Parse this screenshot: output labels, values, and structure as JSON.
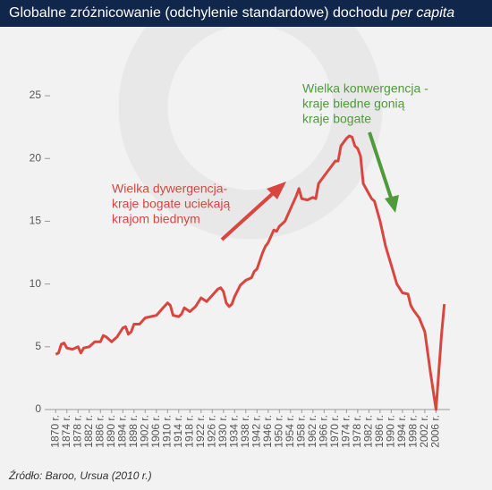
{
  "chart_data": {
    "type": "line",
    "title": "Globalne zróżnicowanie (odchylenie standardowe) dochodu",
    "title_emphasis": "per capita",
    "source": "Źródło: Baroo, Ursua (2010 r.)",
    "color": "#d9453f",
    "x": [
      1870,
      1871,
      1872,
      1873,
      1874,
      1876,
      1878,
      1879,
      1880,
      1882,
      1884,
      1886,
      1887,
      1888,
      1890,
      1892,
      1894,
      1895,
      1896,
      1897,
      1898,
      1900,
      1902,
      1904,
      1906,
      1908,
      1910,
      1911,
      1912,
      1914,
      1915,
      1916,
      1918,
      1920,
      1922,
      1924,
      1926,
      1928,
      1929,
      1930,
      1931,
      1932,
      1933,
      1934,
      1936,
      1938,
      1940,
      1941,
      1942,
      1944,
      1945,
      1946,
      1948,
      1949,
      1950,
      1952,
      1954,
      1956,
      1957,
      1958,
      1960,
      1962,
      1963,
      1964,
      1966,
      1968,
      1970,
      1971,
      1972,
      1974,
      1975,
      1976,
      1977,
      1978,
      1979,
      1980,
      1982,
      1983,
      1984,
      1986,
      1988,
      1990,
      1992,
      1994,
      1996,
      1997,
      1998,
      2000,
      2002,
      2004,
      2006,
      2008,
      2009
    ],
    "values": [
      4.4,
      4.5,
      5.2,
      5.3,
      4.9,
      4.8,
      5.0,
      4.5,
      4.9,
      5.0,
      5.4,
      5.4,
      5.9,
      5.8,
      5.4,
      5.8,
      6.5,
      6.6,
      6.0,
      6.2,
      6.8,
      6.8,
      7.3,
      7.4,
      7.5,
      8.0,
      8.5,
      8.3,
      7.5,
      7.4,
      7.6,
      8.1,
      7.8,
      8.2,
      8.9,
      8.6,
      9.1,
      9.6,
      9.7,
      9.4,
      8.5,
      8.2,
      8.4,
      9.0,
      9.9,
      10.3,
      10.5,
      11.0,
      11.2,
      12.5,
      13.0,
      13.3,
      14.3,
      14.2,
      14.6,
      15.0,
      16.0,
      17.0,
      17.6,
      16.8,
      16.7,
      16.9,
      16.8,
      18.0,
      18.6,
      19.2,
      19.8,
      19.8,
      21.0,
      21.6,
      21.8,
      21.7,
      21.0,
      20.8,
      20.2,
      18.0,
      17.2,
      16.8,
      16.6,
      15.0,
      13.0,
      11.5,
      10.0,
      9.3,
      9.2,
      8.3,
      7.9,
      7.3,
      6.2,
      3.0,
      0,
      6.0,
      8.4
    ],
    "xlim": [
      1868,
      2011
    ],
    "xticks": [
      {
        "value": 1870,
        "label": "1870 r."
      },
      {
        "value": 1874,
        "label": "1874 r."
      },
      {
        "value": 1878,
        "label": "1878 r."
      },
      {
        "value": 1882,
        "label": "1882 r."
      },
      {
        "value": 1886,
        "label": "1886 r."
      },
      {
        "value": 1890,
        "label": "1890 r."
      },
      {
        "value": 1894,
        "label": "1894 r."
      },
      {
        "value": 1898,
        "label": "1898 r."
      },
      {
        "value": 1902,
        "label": "1902 r."
      },
      {
        "value": 1906,
        "label": "1906 r."
      },
      {
        "value": 1910,
        "label": "1910 r."
      },
      {
        "value": 1914,
        "label": "1914 r."
      },
      {
        "value": 1918,
        "label": "1918 r."
      },
      {
        "value": 1922,
        "label": "1922 r."
      },
      {
        "value": 1926,
        "label": "1926 r."
      },
      {
        "value": 1930,
        "label": "1930 r."
      },
      {
        "value": 1934,
        "label": "1934 r."
      },
      {
        "value": 1938,
        "label": "1938 r."
      },
      {
        "value": 1942,
        "label": "1942 r."
      },
      {
        "value": 1946,
        "label": "1946 r."
      },
      {
        "value": 1950,
        "label": "1950 r."
      },
      {
        "value": 1954,
        "label": "1954 r."
      },
      {
        "value": 1958,
        "label": "1958 r."
      },
      {
        "value": 1962,
        "label": "1962 r."
      },
      {
        "value": 1966,
        "label": "1966 r."
      },
      {
        "value": 1970,
        "label": "1970 r."
      },
      {
        "value": 1974,
        "label": "1974 r."
      },
      {
        "value": 1978,
        "label": "1978 r."
      },
      {
        "value": 1982,
        "label": "1982 r."
      },
      {
        "value": 1986,
        "label": "1986 r."
      },
      {
        "value": 1990,
        "label": "1990 r."
      },
      {
        "value": 1994,
        "label": "1994 r."
      },
      {
        "value": 1998,
        "label": "1998 r."
      },
      {
        "value": 2002,
        "label": "2002 r."
      },
      {
        "value": 2006,
        "label": "2006 r."
      }
    ],
    "ylim": [
      0,
      27
    ],
    "yticks": [
      0,
      5,
      10,
      15,
      20,
      25
    ],
    "annotations": [
      {
        "color": "#d9453f",
        "lines": [
          "Wielka dywergencja-",
          "kraje bogate uciekają",
          "krajom biednym"
        ]
      },
      {
        "color": "#4f9a3a",
        "lines": [
          "Wielka konwergencja -",
          "kraje biedne gonią",
          "kraje bogate"
        ]
      }
    ]
  }
}
